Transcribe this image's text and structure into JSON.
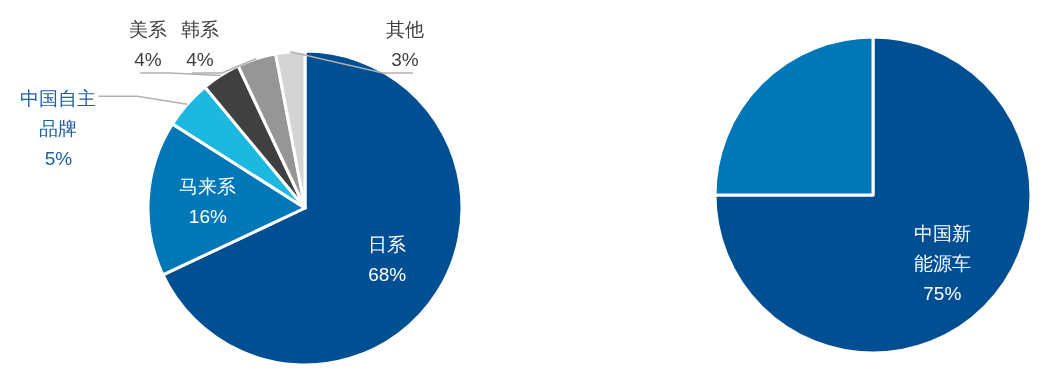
{
  "chart_data": [
    {
      "type": "pie",
      "categories": [
        "日系",
        "马来系",
        "中国自主品牌",
        "美系",
        "韩系",
        "其他"
      ],
      "values": [
        68,
        16,
        5,
        4,
        4,
        3
      ],
      "colors": [
        "#004f93",
        "#0077b6",
        "#1cb8e0",
        "#404040",
        "#969696",
        "#d4d4d4"
      ],
      "value_labels": [
        "68%",
        "16%",
        "5%",
        "4%",
        "4%",
        "3%"
      ]
    },
    {
      "type": "pie",
      "categories": [
        "中国新能源车",
        null
      ],
      "values": [
        75,
        25
      ],
      "colors": [
        "#004f93",
        "#0077b6"
      ],
      "value_labels": [
        "75%",
        null
      ]
    }
  ]
}
